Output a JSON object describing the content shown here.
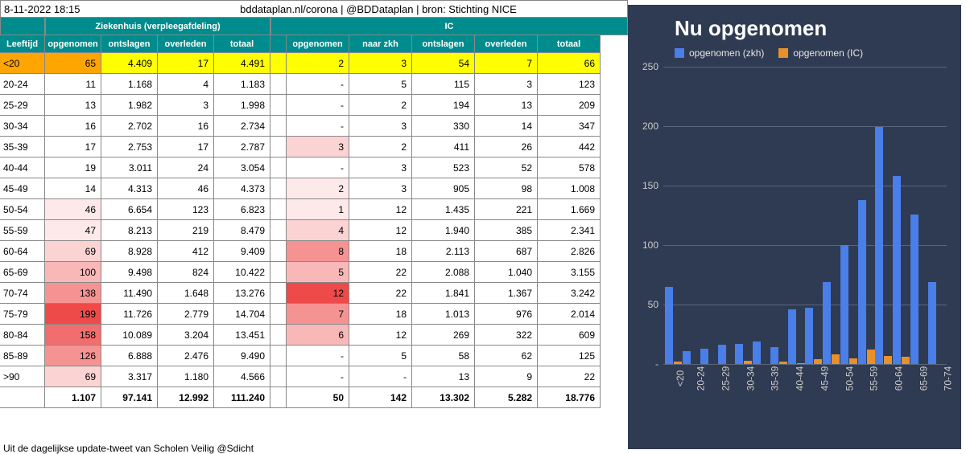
{
  "meta": {
    "date_time": "8-11-2022 18:15",
    "attribution": "bddataplan.nl/corona | @BDDataplan | bron: Stichting NICE",
    "footer": "Uit de dagelijkse update-tweet van Scholen Veilig @Sdicht"
  },
  "headers": {
    "ziekenhuis_group": "Ziekenhuis (verpleegafdeling)",
    "ic_group": "IC",
    "leeftijd": "Leeftijd",
    "zk": [
      "opgenomen",
      "ontslagen",
      "overleden",
      "totaal"
    ],
    "ic": [
      "opgenomen",
      "naar zkh",
      "ontslagen",
      "overleden",
      "totaal"
    ]
  },
  "colors": {
    "header_bg": "#008c8c",
    "border": "#888888",
    "highlight_yellow": "#ffff00",
    "heat_scale": [
      "#ffffff",
      "#fde9e9",
      "#fbd3d3",
      "#f8b8b8",
      "#f59393",
      "#f26d6d",
      "#ee4a4a"
    ],
    "chart_bg": "#2f3b52",
    "bar_zkh": "#4a7ee8",
    "bar_ic": "#e8902a",
    "grid": "#5a6578",
    "chart_text": "#e6e6e6"
  },
  "age_groups": [
    "<20",
    "20-24",
    "25-29",
    "30-34",
    "35-39",
    "40-44",
    "45-49",
    "50-54",
    "55-59",
    "60-64",
    "65-69",
    "70-74",
    "75-79",
    "80-84",
    "85-89",
    ">90"
  ],
  "zk_opgenomen": [
    65,
    11,
    13,
    16,
    17,
    19,
    14,
    46,
    47,
    69,
    100,
    138,
    199,
    158,
    126,
    69
  ],
  "zk_ontslagen": [
    "4.409",
    "1.168",
    "1.982",
    "2.702",
    "2.753",
    "3.011",
    "4.313",
    "6.654",
    "8.213",
    "8.928",
    "9.498",
    "11.490",
    "11.726",
    "10.089",
    "6.888",
    "3.317"
  ],
  "zk_overleden": [
    17,
    4,
    3,
    16,
    17,
    24,
    46,
    123,
    219,
    412,
    824,
    "1.648",
    "2.779",
    "3.204",
    "2.476",
    "1.180"
  ],
  "zk_totaal": [
    "4.491",
    "1.183",
    "1.998",
    "2.734",
    "2.787",
    "3.054",
    "4.373",
    "6.823",
    "8.479",
    "9.409",
    "10.422",
    "13.276",
    "14.704",
    "13.451",
    "9.490",
    "4.566"
  ],
  "ic_opgenomen": [
    2,
    "-",
    "-",
    "-",
    3,
    "-",
    2,
    1,
    4,
    8,
    5,
    12,
    7,
    6,
    "-",
    "-"
  ],
  "ic_naarzkh": [
    3,
    5,
    2,
    3,
    2,
    3,
    3,
    12,
    12,
    18,
    22,
    22,
    18,
    12,
    5,
    "-"
  ],
  "ic_ontslagen": [
    54,
    115,
    194,
    330,
    411,
    523,
    905,
    "1.435",
    "1.940",
    "2.113",
    "2.088",
    "1.841",
    "1.013",
    269,
    58,
    13
  ],
  "ic_overleden": [
    7,
    3,
    13,
    14,
    26,
    52,
    98,
    221,
    385,
    687,
    "1.040",
    "1.367",
    976,
    322,
    62,
    9
  ],
  "ic_totaal": [
    66,
    123,
    209,
    347,
    442,
    578,
    "1.008",
    "1.669",
    "2.341",
    "2.826",
    "3.155",
    "3.242",
    "2.014",
    609,
    125,
    22
  ],
  "totals": {
    "zk_opgenomen": "1.107",
    "zk_ontslagen": "97.141",
    "zk_overleden": "12.992",
    "zk_totaal": "111.240",
    "ic_opgenomen": "50",
    "ic_naarzkh": "142",
    "ic_ontslagen": "13.302",
    "ic_overleden": "5.282",
    "ic_totaal": "18.776"
  },
  "zk_opg_heat": [
    2,
    0,
    0,
    0,
    0,
    0,
    0,
    1,
    1,
    2,
    3,
    4,
    6,
    5,
    4,
    2
  ],
  "ic_opg_heat": [
    1,
    0,
    0,
    0,
    2,
    0,
    1,
    1,
    2,
    4,
    3,
    6,
    4,
    3,
    0,
    0
  ],
  "chart": {
    "title": "Nu opgenomen",
    "legend": [
      {
        "label": "opgenomen (zkh)",
        "color": "#4a7ee8"
      },
      {
        "label": "opgenomen (IC)",
        "color": "#e8902a"
      }
    ],
    "y_max": 250,
    "y_ticks": [
      0,
      50,
      100,
      150,
      200,
      250
    ],
    "zkh_values": [
      65,
      11,
      13,
      16,
      17,
      19,
      14,
      46,
      47,
      69,
      100,
      138,
      199,
      158,
      126,
      69
    ],
    "ic_values": [
      2,
      0,
      0,
      0,
      3,
      0,
      2,
      1,
      4,
      8,
      5,
      12,
      7,
      6,
      0,
      0
    ]
  }
}
